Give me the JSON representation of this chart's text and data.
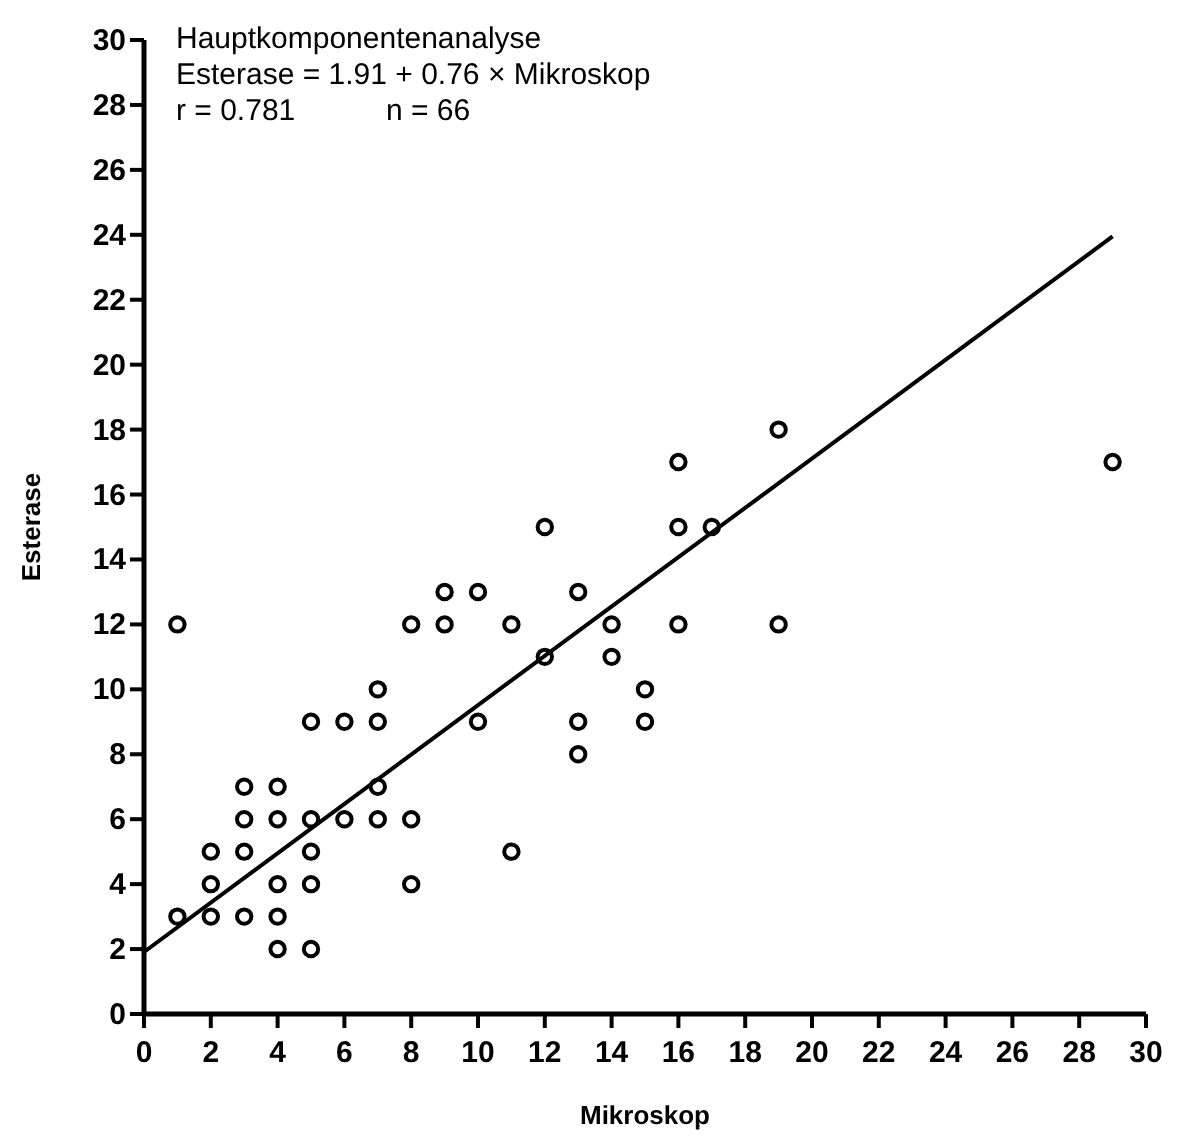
{
  "chart_data": {
    "type": "scatter",
    "xlabel": "Mikroskop",
    "ylabel": "Esterase",
    "annotations": [
      "Hauptkomponentenanalyse",
      "Esterase = 1.91 + 0.76 × Mikroskop",
      "r = 0.781",
      "n = 66"
    ],
    "xlim": [
      0,
      30
    ],
    "xticks": [
      0,
      2,
      4,
      6,
      8,
      10,
      12,
      14,
      16,
      18,
      20,
      22,
      24,
      26,
      28,
      30
    ],
    "ylim": [
      0,
      30
    ],
    "yticks": [
      0,
      2,
      4,
      6,
      8,
      10,
      12,
      14,
      16,
      18,
      20,
      22,
      24,
      26,
      28,
      30
    ],
    "grid": false,
    "series": [
      {
        "marker": "circle",
        "color": "#000000",
        "x": [
          1,
          1,
          2,
          2,
          2,
          3,
          3,
          3,
          3,
          4,
          4,
          4,
          4,
          4,
          5,
          5,
          5,
          5,
          5,
          6,
          6,
          7,
          7,
          7,
          7,
          8,
          8,
          8,
          9,
          9,
          10,
          10,
          11,
          11,
          12,
          12,
          13,
          13,
          13,
          14,
          14,
          15,
          15,
          16,
          16,
          16,
          17,
          19,
          19,
          29
        ],
        "values": [
          12,
          3,
          3,
          4,
          5,
          3,
          5,
          6,
          7,
          2,
          3,
          4,
          6,
          7,
          2,
          4,
          5,
          6,
          9,
          6,
          9,
          6,
          7,
          9,
          10,
          4,
          6,
          12,
          12,
          13,
          9,
          13,
          5,
          12,
          11,
          15,
          8,
          9,
          13,
          11,
          12,
          9,
          10,
          12,
          15,
          17,
          15,
          12,
          18,
          17
        ]
      },
      {
        "type": "line",
        "color": "#000000",
        "line_style": "solid",
        "x": [
          0,
          29
        ],
        "values": [
          1.91,
          23.95
        ]
      }
    ]
  }
}
